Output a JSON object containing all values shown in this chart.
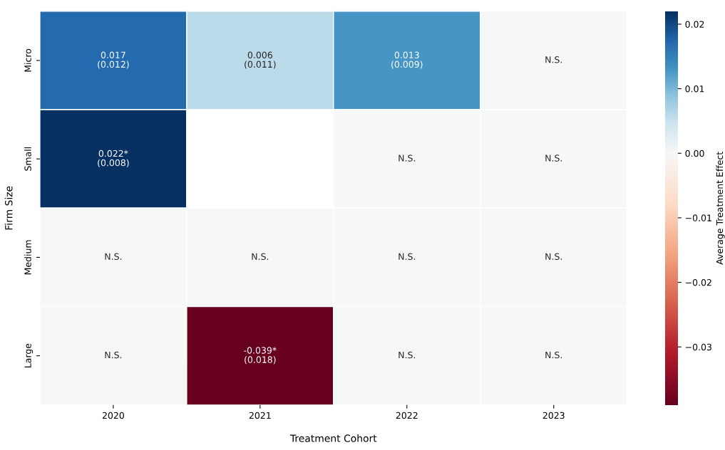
{
  "chart_data": {
    "type": "heatmap",
    "xlabel": "Treatment Cohort",
    "ylabel": "Firm Size",
    "clabel": "Average Treatment Effect",
    "categories": [
      "2020",
      "2021",
      "2022",
      "2023"
    ],
    "y_categories": [
      "Micro",
      "Small",
      "Medium",
      "Large"
    ],
    "cells": [
      [
        0.017,
        0.006,
        0.013,
        0
      ],
      [
        0.022,
        null,
        0,
        0
      ],
      [
        0,
        0,
        0,
        0
      ],
      [
        0,
        -0.039,
        0,
        0
      ]
    ],
    "cell_labels": [
      [
        "0.017\n(0.012)",
        "0.006\n(0.011)",
        "0.013\n(0.009)",
        "N.S."
      ],
      [
        "0.022*\n(0.008)",
        null,
        "N.S.",
        "N.S."
      ],
      [
        "N.S.",
        "N.S.",
        "N.S.",
        "N.S."
      ],
      [
        "N.S.",
        "-0.039*\n(0.018)",
        "N.S.",
        "N.S."
      ]
    ],
    "clim": [
      -0.039,
      0.022
    ],
    "cticks": [
      {
        "value": 0.02,
        "label": "0.02"
      },
      {
        "value": 0.01,
        "label": "0.01"
      },
      {
        "value": 0,
        "label": "0.00"
      },
      {
        "value": -0.01,
        "label": "−0.01"
      },
      {
        "value": -0.02,
        "label": "−0.02"
      },
      {
        "value": -0.03,
        "label": "−0.03"
      }
    ]
  }
}
